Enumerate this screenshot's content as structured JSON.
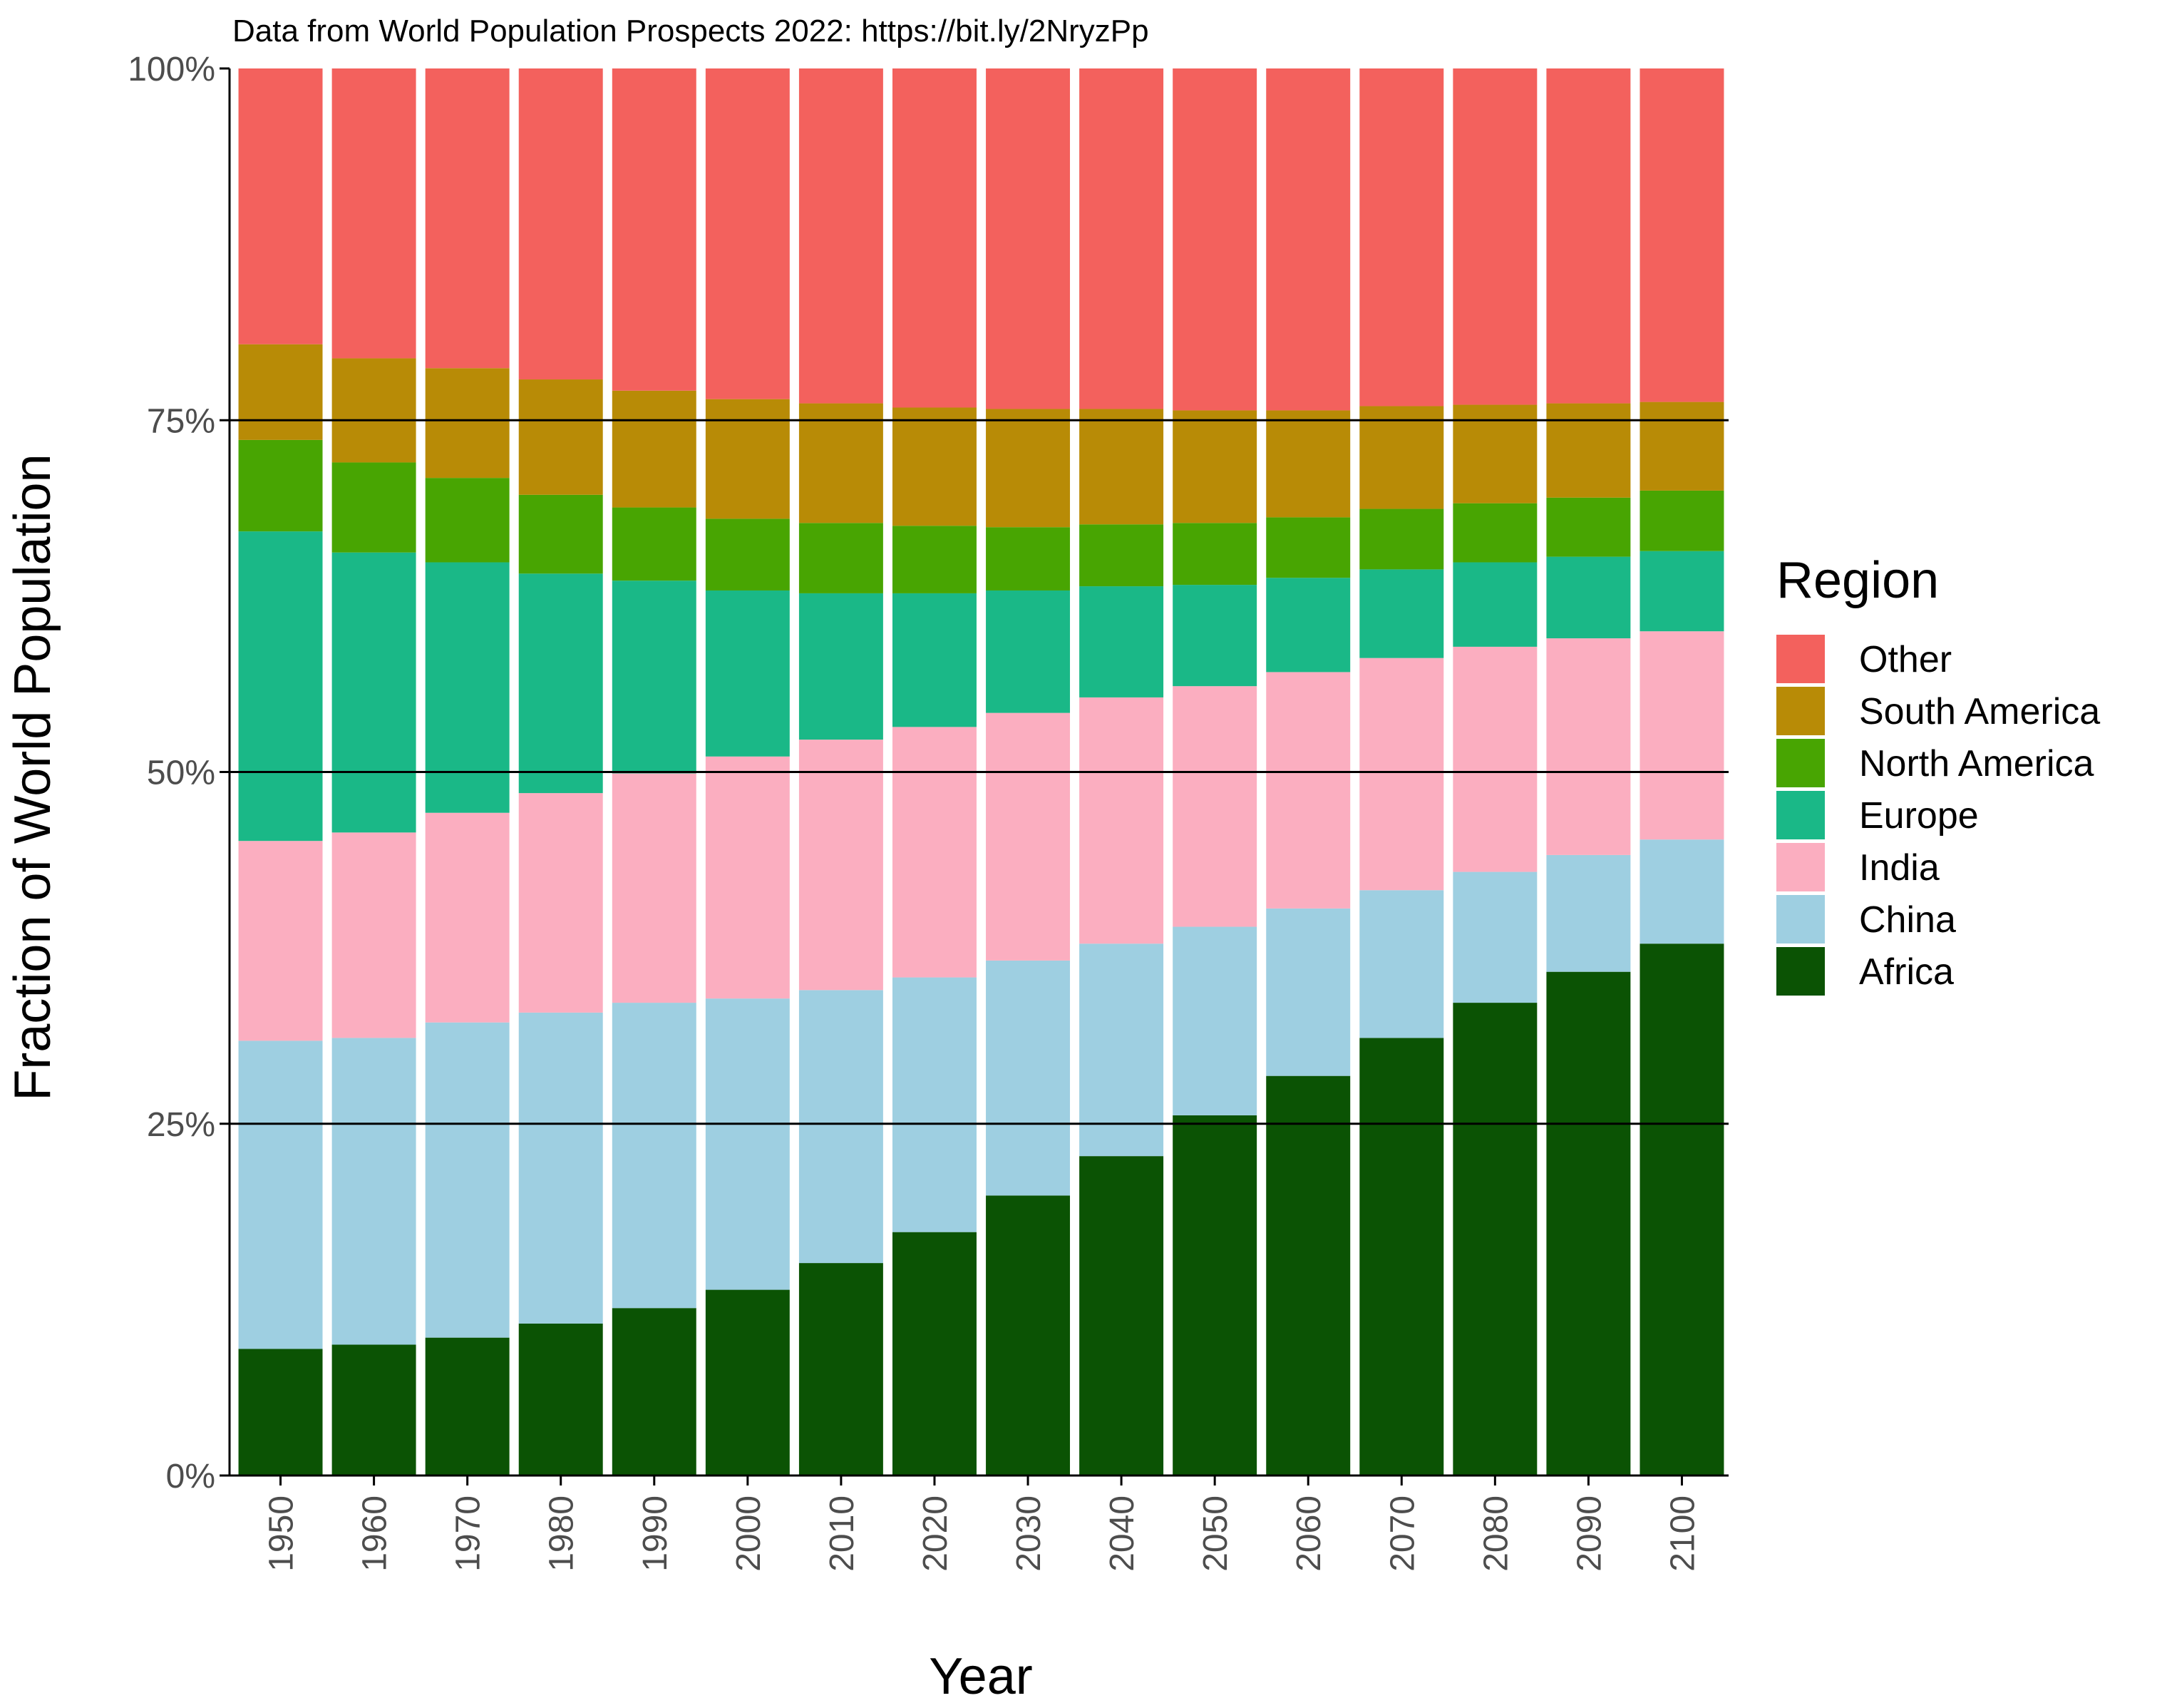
{
  "chart_data": {
    "type": "bar",
    "stacking": "fill",
    "subtitle": "Data from World Population Prospects 2022: https://bit.ly/2NryzPp",
    "xlabel": "Year",
    "ylabel": "Fraction of World Population",
    "ylim": [
      0,
      100
    ],
    "y_ticks": [
      "0%",
      "25%",
      "50%",
      "75%",
      "100%"
    ],
    "y_tick_values": [
      0,
      25,
      50,
      75,
      100
    ],
    "hlines": [
      25,
      50,
      75
    ],
    "categories": [
      "1950",
      "1960",
      "1970",
      "1980",
      "1990",
      "2000",
      "2010",
      "2020",
      "2030",
      "2040",
      "2050",
      "2060",
      "2070",
      "2080",
      "2090",
      "2100"
    ],
    "legend_title": "Region",
    "legend_position": "right",
    "series": [
      {
        "name": "Africa",
        "color": "#0b5304",
        "values": [
          9.0,
          9.3,
          9.8,
          10.8,
          11.9,
          13.2,
          15.1,
          17.3,
          19.9,
          22.7,
          25.6,
          28.4,
          31.1,
          33.6,
          35.8,
          37.8
        ]
      },
      {
        "name": "China",
        "color": "#9ecfe1",
        "values": [
          21.9,
          21.8,
          22.4,
          22.1,
          21.7,
          20.7,
          19.4,
          18.1,
          16.7,
          15.1,
          13.4,
          11.9,
          10.5,
          9.3,
          8.3,
          7.4
        ]
      },
      {
        "name": "India",
        "color": "#fbaec0",
        "values": [
          14.2,
          14.6,
          14.9,
          15.6,
          16.3,
          17.2,
          17.8,
          17.8,
          17.6,
          17.5,
          17.1,
          16.8,
          16.5,
          16.0,
          15.4,
          14.8
        ]
      },
      {
        "name": "Europe",
        "color": "#1ab887",
        "values": [
          22.0,
          19.9,
          17.8,
          15.6,
          13.7,
          11.8,
          10.4,
          9.5,
          8.7,
          7.9,
          7.2,
          6.7,
          6.3,
          6.0,
          5.8,
          5.7
        ]
      },
      {
        "name": "North America",
        "color": "#48a502",
        "values": [
          6.5,
          6.4,
          6.0,
          5.6,
          5.2,
          5.1,
          5.0,
          4.8,
          4.5,
          4.4,
          4.4,
          4.3,
          4.3,
          4.2,
          4.2,
          4.3
        ]
      },
      {
        "name": "South America",
        "color": "#b88b06",
        "values": [
          6.8,
          7.4,
          7.8,
          8.2,
          8.3,
          8.5,
          8.5,
          8.4,
          8.4,
          8.2,
          8.0,
          7.6,
          7.3,
          7.0,
          6.7,
          6.3
        ]
      },
      {
        "name": "Other",
        "color": "#f3615d",
        "values": [
          19.6,
          20.6,
          21.3,
          22.1,
          22.9,
          23.5,
          23.8,
          24.1,
          24.2,
          24.2,
          24.3,
          24.3,
          24.0,
          23.9,
          23.8,
          23.7
        ]
      }
    ],
    "legend_order": [
      "Other",
      "South America",
      "North America",
      "Europe",
      "India",
      "China",
      "Africa"
    ]
  }
}
